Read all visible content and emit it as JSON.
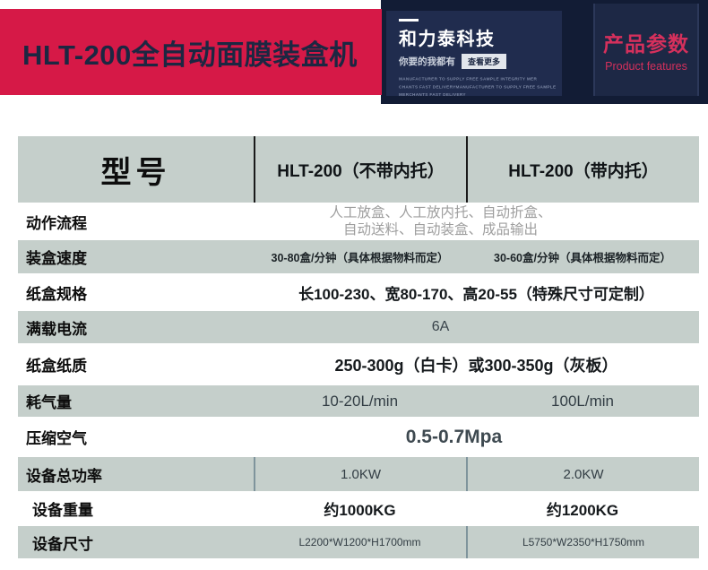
{
  "banner": {
    "title": "HLT-200全自动面膜装盒机",
    "brand": {
      "name": "和力泰科技",
      "tagline": "你要的我都有",
      "more_button": "查看更多",
      "fine_print": [
        "MANUFACTURER TO SUPPLY FREE SAMPLE INTEGRITY MER",
        "CHANTS FAST DELIVERYMANUFACTURER TO SUPPLY FREE SAMPLE INTEGRIT",
        "MERCHANTS FAST DELIVERY"
      ]
    },
    "badge": {
      "title": "产品参数",
      "subtitle": "Product features"
    }
  },
  "colors": {
    "banner_red": "#d61947",
    "navy_backdrop": "#121c35",
    "panel_navy": "#202c4e",
    "badge_text": "#d5305c",
    "table_gray": "#c5cfcb",
    "muted_value": "#9e9e9e"
  },
  "table": {
    "header": {
      "label": "型号",
      "col2": "HLT-200（不带内托）",
      "col3": "HLT-200（带内托）"
    },
    "rows": [
      {
        "label": "动作流程",
        "value_line1": "人工放盒、人工放内托、自动折盒、",
        "value_line2": "自动送料、自动装盒、成品输出"
      },
      {
        "label": "装盒速度",
        "value_col2": "30-80盒/分钟（具体根据物料而定）",
        "value_col3": "30-60盒/分钟（具体根据物料而定）"
      },
      {
        "label": "纸盒规格",
        "value_span": "长100-230、宽80-170、高20-55（特殊尺寸可定制）"
      },
      {
        "label": "满载电流",
        "value_span": "6A"
      },
      {
        "label": "纸盒纸质",
        "value_span": "250-300g（白卡）或300-350g（灰板）"
      },
      {
        "label": "耗气量",
        "value_col2": "10-20L/min",
        "value_col3": "100L/min"
      },
      {
        "label": "压缩空气",
        "value_span": "0.5-0.7Mpa"
      },
      {
        "label": "设备总功率",
        "value_col2": "1.0KW",
        "value_col3": "2.0KW"
      },
      {
        "label": "设备重量",
        "value_col2": "约1000KG",
        "value_col3": "约1200KG"
      },
      {
        "label": "设备尺寸",
        "value_col2": "L2200*W1200*H1700mm",
        "value_col3": "L5750*W2350*H1750mm"
      }
    ]
  }
}
